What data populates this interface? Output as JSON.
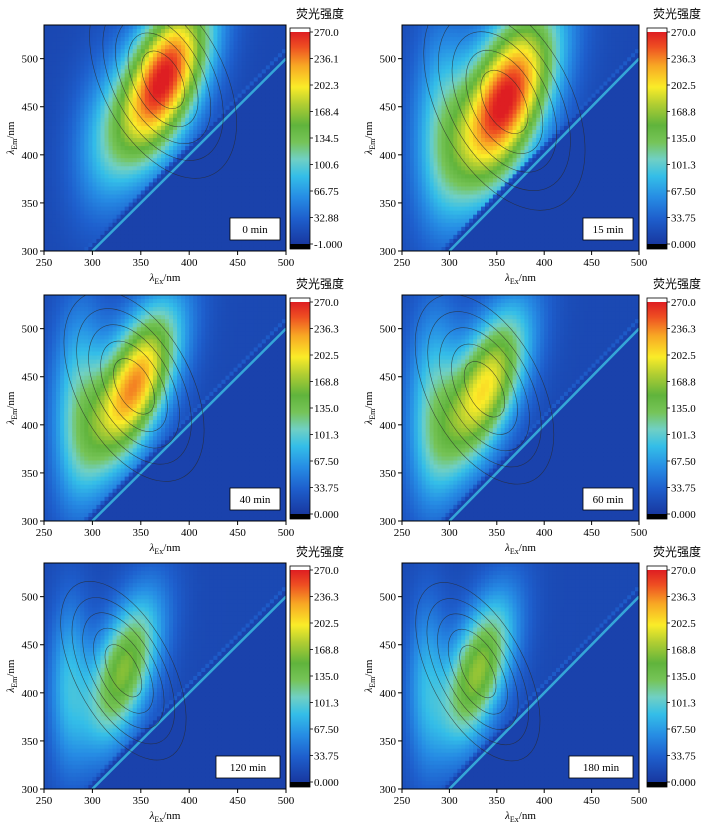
{
  "chart_data": [
    {
      "type": "heatmap",
      "panel_label": "0 min",
      "legend_title": "荧光强度",
      "colorbar_ticks": [
        "270.0",
        "236.1",
        "202.3",
        "168.4",
        "134.5",
        "100.6",
        "66.75",
        "32.88",
        "-1.000"
      ],
      "color_range": [
        -1.0,
        270.0
      ],
      "xlim": [
        250,
        500
      ],
      "ylim": [
        300,
        535
      ],
      "x_ticks": [
        "250",
        "300",
        "350",
        "400",
        "450",
        "500"
      ],
      "y_ticks": [
        "300",
        "350",
        "400",
        "450",
        "500"
      ],
      "xlabel": {
        "symbol": "λ",
        "sub": "Ex",
        "unit": "/nm"
      },
      "ylabel": {
        "symbol": "λ",
        "sub": "Em",
        "unit": "/nm"
      },
      "peaks": [
        {
          "ex": 373,
          "em": 478,
          "intensity": 262,
          "sx": 34,
          "sy": 60,
          "rho": 0.55
        },
        {
          "ex": 310,
          "em": 420,
          "intensity": 45,
          "sx": 25,
          "sy": 60,
          "rho": 0.2
        }
      ],
      "background": 12
    },
    {
      "type": "heatmap",
      "panel_label": "15 min",
      "legend_title": "荧光强度",
      "colorbar_ticks": [
        "270.0",
        "236.3",
        "202.5",
        "168.8",
        "135.0",
        "101.3",
        "67.50",
        "33.75",
        "0.000"
      ],
      "color_range": [
        0.0,
        270.0
      ],
      "xlim": [
        250,
        500
      ],
      "ylim": [
        300,
        535
      ],
      "x_ticks": [
        "250",
        "300",
        "350",
        "400",
        "450",
        "500"
      ],
      "y_ticks": [
        "300",
        "350",
        "400",
        "450",
        "500"
      ],
      "xlabel": {
        "symbol": "λ",
        "sub": "Ex",
        "unit": "/nm"
      },
      "ylabel": {
        "symbol": "λ",
        "sub": "Em",
        "unit": "/nm"
      },
      "peaks": [
        {
          "ex": 358,
          "em": 455,
          "intensity": 262,
          "sx": 38,
          "sy": 66,
          "rho": 0.55
        },
        {
          "ex": 290,
          "em": 440,
          "intensity": 70,
          "sx": 22,
          "sy": 70,
          "rho": 0.1
        }
      ],
      "background": 14
    },
    {
      "type": "heatmap",
      "panel_label": "40 min",
      "legend_title": "荧光强度",
      "colorbar_ticks": [
        "270.0",
        "236.3",
        "202.5",
        "168.8",
        "135.0",
        "101.3",
        "67.50",
        "33.75",
        "0.000"
      ],
      "color_range": [
        0.0,
        270.0
      ],
      "xlim": [
        250,
        500
      ],
      "ylim": [
        300,
        535
      ],
      "x_ticks": [
        "250",
        "300",
        "350",
        "400",
        "450",
        "500"
      ],
      "y_ticks": [
        "300",
        "350",
        "400",
        "450",
        "500"
      ],
      "xlabel": {
        "symbol": "λ",
        "sub": "Ex",
        "unit": "/nm"
      },
      "ylabel": {
        "symbol": "λ",
        "sub": "Em",
        "unit": "/nm"
      },
      "peaks": [
        {
          "ex": 343,
          "em": 440,
          "intensity": 222,
          "sx": 32,
          "sy": 58,
          "rho": 0.6
        },
        {
          "ex": 285,
          "em": 425,
          "intensity": 85,
          "sx": 20,
          "sy": 70,
          "rho": 0.1
        }
      ],
      "background": 14
    },
    {
      "type": "heatmap",
      "panel_label": "60 min",
      "legend_title": "荧光强度",
      "colorbar_ticks": [
        "270.0",
        "236.3",
        "202.5",
        "168.8",
        "135.0",
        "101.3",
        "67.50",
        "33.75",
        "0.000"
      ],
      "color_range": [
        0.0,
        270.0
      ],
      "xlim": [
        250,
        500
      ],
      "ylim": [
        300,
        535
      ],
      "x_ticks": [
        "250",
        "300",
        "350",
        "400",
        "450",
        "500"
      ],
      "y_ticks": [
        "300",
        "350",
        "400",
        "450",
        "500"
      ],
      "xlabel": {
        "symbol": "λ",
        "sub": "Ex",
        "unit": "/nm"
      },
      "ylabel": {
        "symbol": "λ",
        "sub": "Em",
        "unit": "/nm"
      },
      "peaks": [
        {
          "ex": 337,
          "em": 437,
          "intensity": 190,
          "sx": 32,
          "sy": 58,
          "rho": 0.6
        },
        {
          "ex": 282,
          "em": 425,
          "intensity": 82,
          "sx": 20,
          "sy": 70,
          "rho": 0.1
        }
      ],
      "background": 14
    },
    {
      "type": "heatmap",
      "panel_label": "120 min",
      "legend_title": "荧光强度",
      "colorbar_ticks": [
        "270.0",
        "236.3",
        "202.5",
        "168.8",
        "135.0",
        "101.3",
        "67.50",
        "33.75",
        "0.000"
      ],
      "color_range": [
        0.0,
        270.0
      ],
      "xlim": [
        250,
        500
      ],
      "ylim": [
        300,
        535
      ],
      "x_ticks": [
        "250",
        "300",
        "350",
        "400",
        "450",
        "500"
      ],
      "y_ticks": [
        "300",
        "350",
        "400",
        "450",
        "500"
      ],
      "xlabel": {
        "symbol": "λ",
        "sub": "Ex",
        "unit": "/nm"
      },
      "ylabel": {
        "symbol": "λ",
        "sub": "Em",
        "unit": "/nm"
      },
      "peaks": [
        {
          "ex": 332,
          "em": 423,
          "intensity": 150,
          "sx": 27,
          "sy": 55,
          "rho": 0.55
        },
        {
          "ex": 275,
          "em": 415,
          "intensity": 68,
          "sx": 15,
          "sy": 60,
          "rho": 0.1
        }
      ],
      "background": 14
    },
    {
      "type": "heatmap",
      "panel_label": "180 min",
      "legend_title": "荧光强度",
      "colorbar_ticks": [
        "270.0",
        "236.3",
        "202.5",
        "168.8",
        "135.0",
        "101.3",
        "67.50",
        "33.75",
        "0.000"
      ],
      "color_range": [
        0.0,
        270.0
      ],
      "xlim": [
        250,
        500
      ],
      "ylim": [
        300,
        535
      ],
      "x_ticks": [
        "250",
        "300",
        "350",
        "400",
        "450",
        "500"
      ],
      "y_ticks": [
        "300",
        "350",
        "400",
        "450",
        "500"
      ],
      "xlabel": {
        "symbol": "λ",
        "sub": "Ex",
        "unit": "/nm"
      },
      "ylabel": {
        "symbol": "λ",
        "sub": "Em",
        "unit": "/nm"
      },
      "peaks": [
        {
          "ex": 330,
          "em": 422,
          "intensity": 155,
          "sx": 27,
          "sy": 55,
          "rho": 0.55
        },
        {
          "ex": 275,
          "em": 415,
          "intensity": 62,
          "sx": 15,
          "sy": 60,
          "rho": 0.1
        }
      ],
      "background": 14
    }
  ]
}
